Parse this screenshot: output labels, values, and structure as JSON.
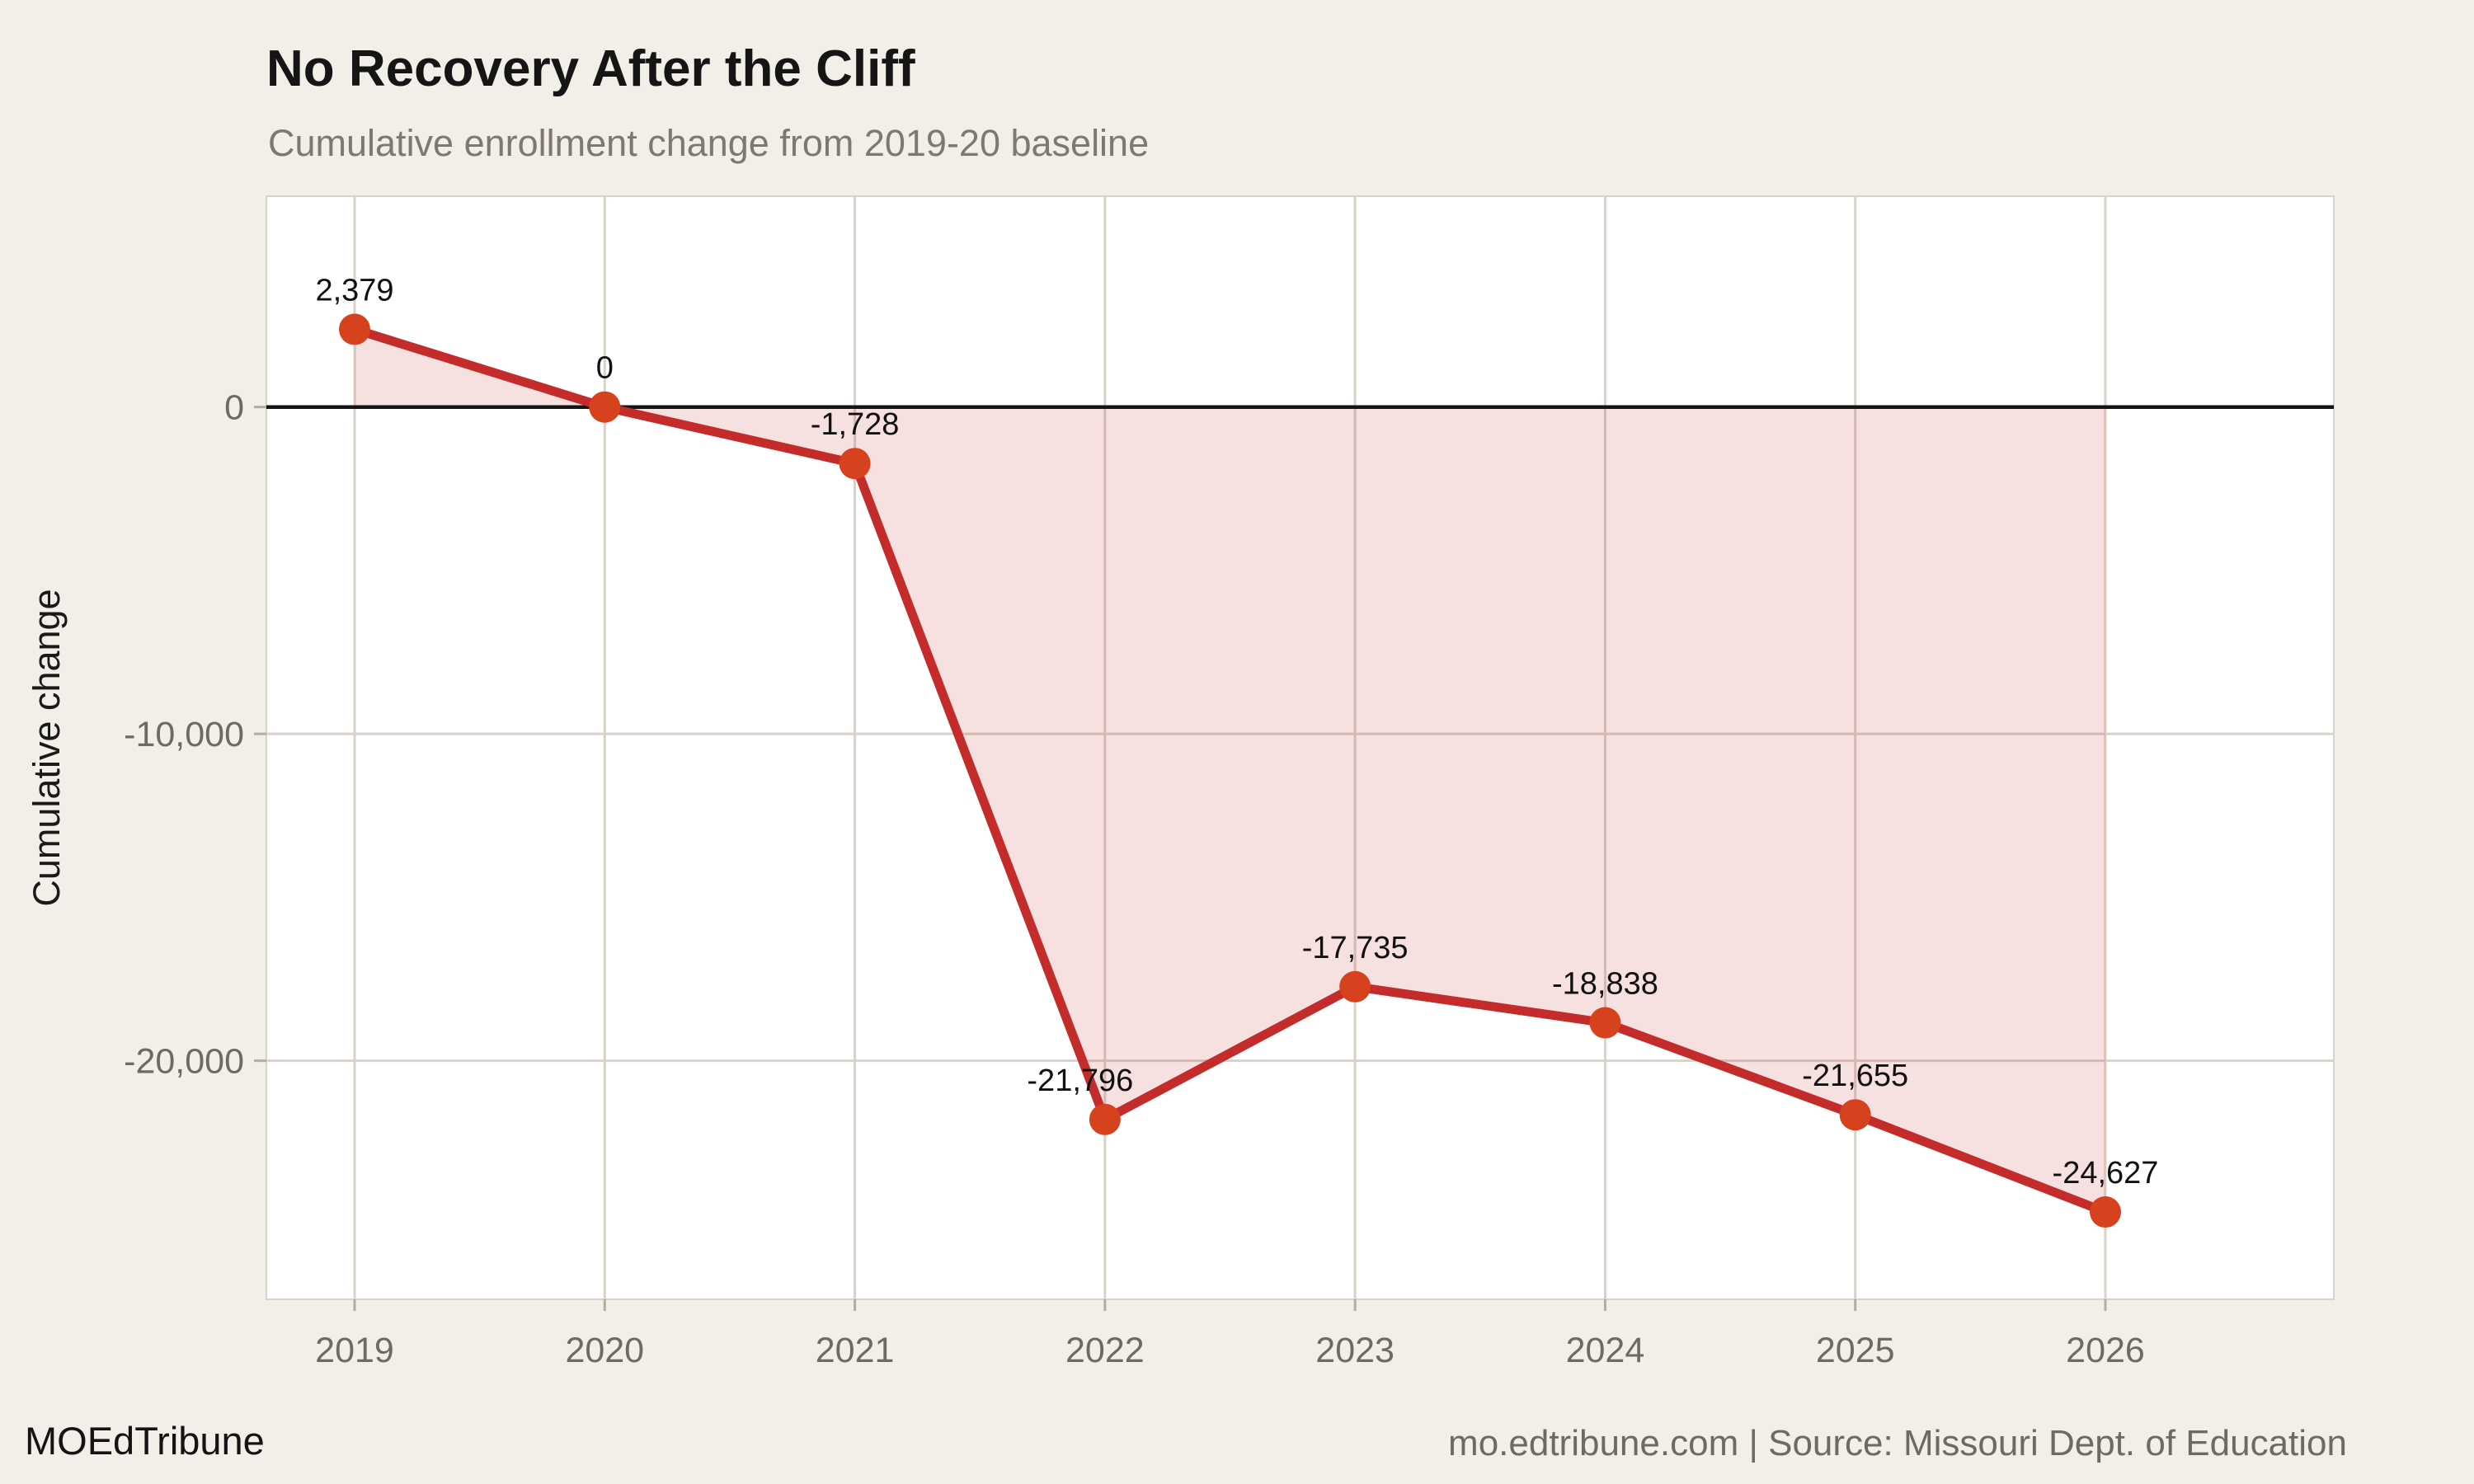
{
  "header": {
    "title": "No Recovery After the Cliff",
    "subtitle": "Cumulative enrollment change from 2019-20 baseline"
  },
  "footer": {
    "brand": "MOEdTribune",
    "attribution": "mo.edtribune.com | Source: Missouri Dept. of Education"
  },
  "colors": {
    "background": "#f2efe9",
    "panel": "#ffffff",
    "panel_border": "#d8d2c8",
    "gridline": "#d8d2c8",
    "tick": "#b3ada1",
    "zero_line": "#141414",
    "line": "#c42b2b",
    "point": "#d5421d",
    "area_fill": "#c52c2c",
    "area_fill_opacity": 0.15,
    "data_label": "#111111",
    "axis_text": "#6f6a61",
    "axis_title": "#1a1a1a"
  },
  "chart_data": {
    "type": "line",
    "title": "No Recovery After the Cliff",
    "subtitle": "Cumulative enrollment change from 2019-20 baseline",
    "x": [
      2019,
      2020,
      2021,
      2022,
      2023,
      2024,
      2025,
      2026
    ],
    "x_tick_labels": [
      "2019",
      "2020",
      "2021",
      "2022",
      "2023",
      "2024",
      "2025",
      "2026"
    ],
    "values": [
      2379,
      0,
      -1728,
      -21796,
      -17735,
      -18838,
      -21655,
      -24627
    ],
    "point_labels": [
      "2,379",
      "0",
      "-1,728",
      "-21,796",
      "-17,735",
      "-18,838",
      "-21,655",
      "-24,627"
    ],
    "label_dx": [
      0,
      0,
      0,
      -30,
      0,
      0,
      0,
      0
    ],
    "y_ticks": [
      {
        "value": 0,
        "label": "0"
      },
      {
        "value": -10000,
        "label": "-10,000"
      },
      {
        "value": -20000,
        "label": "-20,000"
      }
    ],
    "xlabel": "",
    "ylabel": "Cumulative change",
    "ylim": [
      -27300,
      6450
    ],
    "grid": true,
    "zero_baseline": true,
    "area_fill_to_zero": true,
    "legend": "none"
  }
}
